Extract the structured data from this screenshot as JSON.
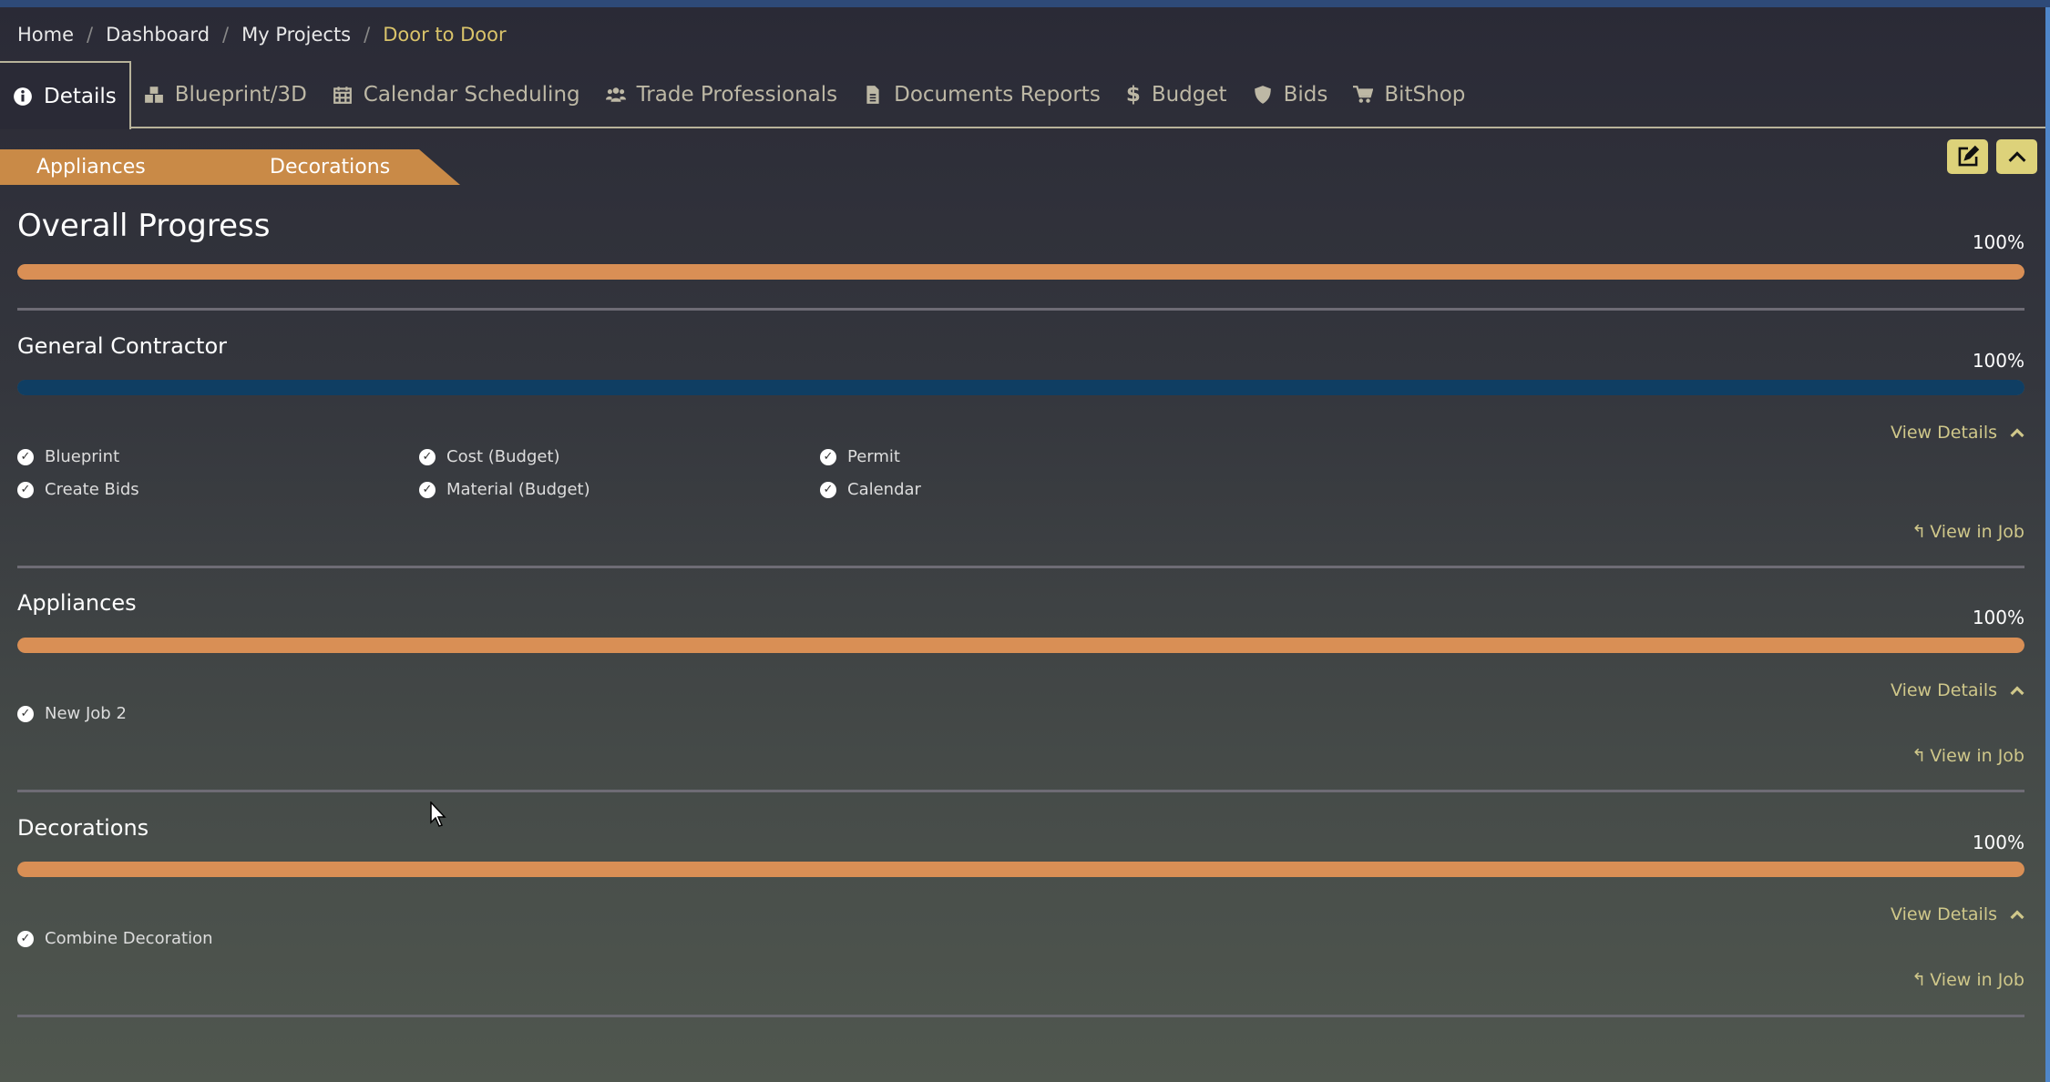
{
  "breadcrumb": [
    "Home",
    "Dashboard",
    "My Projects",
    "Door to Door"
  ],
  "tabs": [
    {
      "label": "Details",
      "icon": "info-icon"
    },
    {
      "label": "Blueprint/3D",
      "icon": "cubes-icon"
    },
    {
      "label": "Calendar Scheduling",
      "icon": "calendar-icon"
    },
    {
      "label": "Trade Professionals",
      "icon": "users-icon"
    },
    {
      "label": "Documents Reports",
      "icon": "document-icon"
    },
    {
      "label": "Budget",
      "icon": "dollar-icon"
    },
    {
      "label": "Bids",
      "icon": "shield-icon"
    },
    {
      "label": "BitShop",
      "icon": "cart-icon"
    }
  ],
  "strip": [
    "Appliances",
    "Decorations"
  ],
  "overall": {
    "title": "Overall Progress",
    "percent_label": "100%",
    "percent": 100,
    "color": "#d98f55"
  },
  "sections": [
    {
      "title": "General Contractor",
      "percent_label": "100%",
      "percent": 100,
      "color": "#0f3e63",
      "items": [
        "Blueprint",
        "Cost (Budget)",
        "Permit",
        "Create Bids",
        "Material (Budget)",
        "Calendar"
      ]
    },
    {
      "title": "Appliances",
      "percent_label": "100%",
      "percent": 100,
      "color": "#d98f55",
      "items": [
        "New Job 2"
      ]
    },
    {
      "title": "Decorations",
      "percent_label": "100%",
      "percent": 100,
      "color": "#d98f55",
      "items": [
        "Combine Decoration"
      ]
    }
  ],
  "view_details": "View Details",
  "view_in_job": "View in Job"
}
